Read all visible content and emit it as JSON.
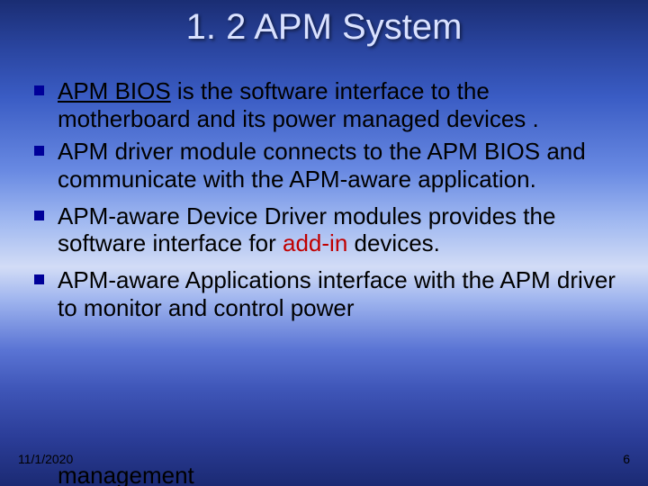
{
  "slide": {
    "title": "1. 2 APM System",
    "title_color": "#d9e1ff",
    "title_fontsize": 40,
    "background_gradient": [
      "#1a2d73",
      "#2a45a0",
      "#3a5cc4",
      "#6889e2",
      "#9db6f0",
      "#d2dcf6",
      "#9db3ee",
      "#5a74d4",
      "#3f56b8",
      "#2b3d98",
      "#1b2a73"
    ],
    "body_fontsize": 26,
    "bullet_color": "#000099",
    "text_color": "#000000",
    "accent_color": "#c00000"
  },
  "bullets": [
    {
      "runs": [
        {
          "t": "APM BIOS",
          "u": true
        },
        {
          "t": "  is  the software interface to the motherboard and its power managed devices ."
        }
      ]
    },
    {
      "runs": [
        {
          "t": "APM driver module connects to the APM BIOS and communicate with the APM-aware application."
        }
      ]
    },
    {
      "runs": [
        {
          "t": "APM-aware Device Driver modules provides the software interface for "
        },
        {
          "t": "add-in",
          "accent": true
        },
        {
          "t": " devices."
        }
      ]
    },
    {
      "runs": [
        {
          "t": "APM-aware Applications interface with the APM driver to monitor and control power"
        }
      ]
    }
  ],
  "cutoff_line": "management",
  "footer": {
    "date": "11/1/2020",
    "page": "6"
  }
}
